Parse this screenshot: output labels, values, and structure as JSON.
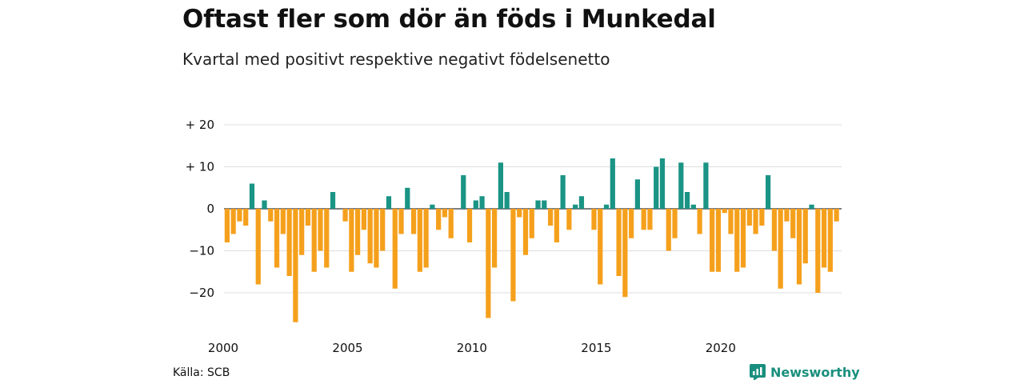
{
  "header": {
    "title": "Oftast fler som dör än föds i Munkedal",
    "subtitle": "Kvartal med positivt respektive negativt födelsenetto"
  },
  "footer": {
    "source": "Källa: SCB",
    "brand": "Newsworthy"
  },
  "colors": {
    "positive": "#1a9485",
    "negative": "#f5a01c",
    "grid": "#dddddd",
    "brand": "#1a8f7e"
  },
  "chart_data": {
    "type": "bar",
    "y_ticks": [
      {
        "value": 20,
        "label": "+ 20"
      },
      {
        "value": 10,
        "label": "+ 10"
      },
      {
        "value": 0,
        "label": "0"
      },
      {
        "value": -10,
        "label": "−10"
      },
      {
        "value": -20,
        "label": "−20"
      }
    ],
    "ylim": [
      -28,
      21
    ],
    "x_ticks": [
      "2000",
      "2005",
      "2010",
      "2015",
      "2020"
    ],
    "start_year": 2000,
    "grid": true,
    "values": [
      -8,
      -6,
      -3,
      -4,
      6,
      -18,
      2,
      -3,
      -14,
      -6,
      -16,
      -27,
      -11,
      -4,
      -15,
      -10,
      -14,
      4,
      0,
      -3,
      -15,
      -11,
      -5,
      -13,
      -14,
      -10,
      3,
      -19,
      -6,
      5,
      -6,
      -15,
      -14,
      1,
      -5,
      -2,
      -7,
      0,
      8,
      -8,
      2,
      3,
      -26,
      -14,
      11,
      4,
      -22,
      -2,
      -11,
      -7,
      2,
      2,
      -4,
      -8,
      8,
      -5,
      1,
      3,
      0,
      -5,
      -18,
      1,
      12,
      -16,
      -21,
      -7,
      7,
      -5,
      -5,
      10,
      12,
      -10,
      -7,
      11,
      4,
      1,
      -6,
      11,
      -15,
      -15,
      -1,
      -6,
      -15,
      -14,
      -4,
      -6,
      -4,
      8,
      -10,
      -19,
      -3,
      -7,
      -18,
      -13,
      1,
      -20,
      -14,
      -15,
      -3
    ]
  }
}
